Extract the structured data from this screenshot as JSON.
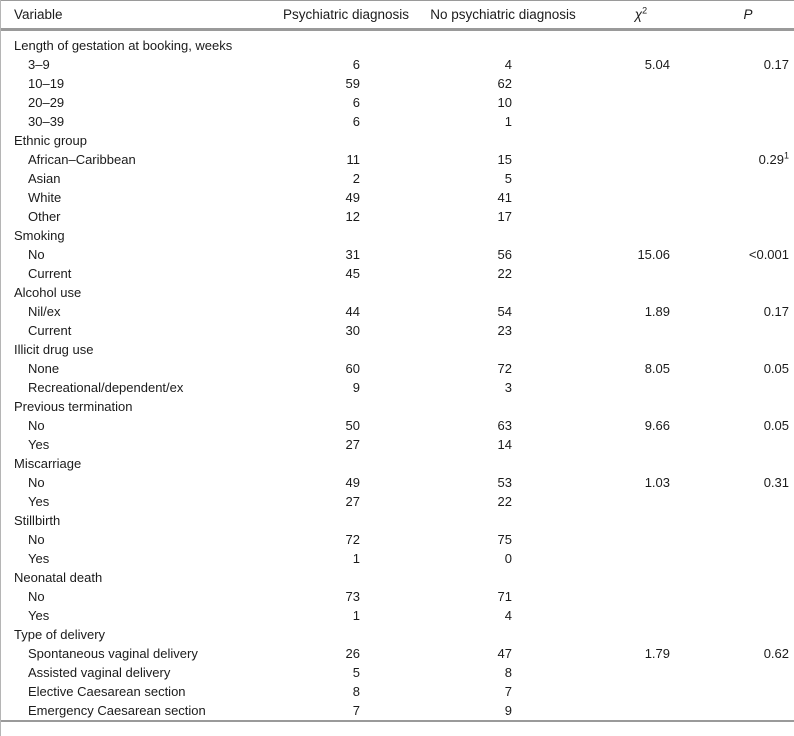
{
  "table": {
    "header": {
      "variable": "Variable",
      "psych": "Psychiatric diagnosis",
      "no_psych": "No psychiatric diagnosis",
      "chi_base": "χ",
      "chi_sup": "2",
      "p": "P"
    },
    "rows": [
      {
        "label": "Length of gestation at booking, weeks",
        "group": true,
        "pd": "",
        "npd": "",
        "chi2": "",
        "p": ""
      },
      {
        "label": "3–9",
        "group": false,
        "pd": "6",
        "npd": "4",
        "chi2": "5.04",
        "p": "0.17"
      },
      {
        "label": "10–19",
        "group": false,
        "pd": "59",
        "npd": "62",
        "chi2": "",
        "p": ""
      },
      {
        "label": "20–29",
        "group": false,
        "pd": "6",
        "npd": "10",
        "chi2": "",
        "p": ""
      },
      {
        "label": "30–39",
        "group": false,
        "pd": "6",
        "npd": "1",
        "chi2": "",
        "p": ""
      },
      {
        "label": "Ethnic group",
        "group": true,
        "pd": "",
        "npd": "",
        "chi2": "",
        "p": ""
      },
      {
        "label": "African–Caribbean",
        "group": false,
        "pd": "11",
        "npd": "15",
        "chi2": "",
        "p": "0.29",
        "p_sup": "1"
      },
      {
        "label": "Asian",
        "group": false,
        "pd": "2",
        "npd": "5",
        "chi2": "",
        "p": ""
      },
      {
        "label": "White",
        "group": false,
        "pd": "49",
        "npd": "41",
        "chi2": "",
        "p": ""
      },
      {
        "label": "Other",
        "group": false,
        "pd": "12",
        "npd": "17",
        "chi2": "",
        "p": ""
      },
      {
        "label": "Smoking",
        "group": true,
        "pd": "",
        "npd": "",
        "chi2": "",
        "p": ""
      },
      {
        "label": "No",
        "group": false,
        "pd": "31",
        "npd": "56",
        "chi2": "15.06",
        "p": "<0.001"
      },
      {
        "label": "Current",
        "group": false,
        "pd": "45",
        "npd": "22",
        "chi2": "",
        "p": ""
      },
      {
        "label": "Alcohol use",
        "group": true,
        "pd": "",
        "npd": "",
        "chi2": "",
        "p": ""
      },
      {
        "label": "Nil/ex",
        "group": false,
        "pd": "44",
        "npd": "54",
        "chi2": "1.89",
        "p": "0.17"
      },
      {
        "label": "Current",
        "group": false,
        "pd": "30",
        "npd": "23",
        "chi2": "",
        "p": ""
      },
      {
        "label": "Illicit drug use",
        "group": true,
        "pd": "",
        "npd": "",
        "chi2": "",
        "p": ""
      },
      {
        "label": "None",
        "group": false,
        "pd": "60",
        "npd": "72",
        "chi2": "8.05",
        "p": "0.05"
      },
      {
        "label": "Recreational/dependent/ex",
        "group": false,
        "pd": "9",
        "npd": "3",
        "chi2": "",
        "p": ""
      },
      {
        "label": "Previous termination",
        "group": true,
        "pd": "",
        "npd": "",
        "chi2": "",
        "p": ""
      },
      {
        "label": "No",
        "group": false,
        "pd": "50",
        "npd": "63",
        "chi2": "9.66",
        "p": "0.05"
      },
      {
        "label": "Yes",
        "group": false,
        "pd": "27",
        "npd": "14",
        "chi2": "",
        "p": ""
      },
      {
        "label": "Miscarriage",
        "group": true,
        "pd": "",
        "npd": "",
        "chi2": "",
        "p": ""
      },
      {
        "label": "No",
        "group": false,
        "pd": "49",
        "npd": "53",
        "chi2": "1.03",
        "p": "0.31"
      },
      {
        "label": "Yes",
        "group": false,
        "pd": "27",
        "npd": "22",
        "chi2": "",
        "p": ""
      },
      {
        "label": "Stillbirth",
        "group": true,
        "pd": "",
        "npd": "",
        "chi2": "",
        "p": ""
      },
      {
        "label": "No",
        "group": false,
        "pd": "72",
        "npd": "75",
        "chi2": "",
        "p": ""
      },
      {
        "label": "Yes",
        "group": false,
        "pd": "1",
        "npd": "0",
        "chi2": "",
        "p": ""
      },
      {
        "label": "Neonatal death",
        "group": true,
        "pd": "",
        "npd": "",
        "chi2": "",
        "p": ""
      },
      {
        "label": "No",
        "group": false,
        "pd": "73",
        "npd": "71",
        "chi2": "",
        "p": ""
      },
      {
        "label": "Yes",
        "group": false,
        "pd": "1",
        "npd": "4",
        "chi2": "",
        "p": ""
      },
      {
        "label": "Type of delivery",
        "group": true,
        "pd": "",
        "npd": "",
        "chi2": "",
        "p": ""
      },
      {
        "label": "Spontaneous vaginal delivery",
        "group": false,
        "pd": "26",
        "npd": "47",
        "chi2": "1.79",
        "p": "0.62"
      },
      {
        "label": "Assisted vaginal delivery",
        "group": false,
        "pd": "5",
        "npd": "8",
        "chi2": "",
        "p": ""
      },
      {
        "label": "Elective Caesarean section",
        "group": false,
        "pd": "8",
        "npd": "7",
        "chi2": "",
        "p": ""
      },
      {
        "label": "Emergency Caesarean section",
        "group": false,
        "pd": "7",
        "npd": "9",
        "chi2": "",
        "p": ""
      }
    ],
    "colors": {
      "rule": "#9a9a9a",
      "left_rule": "#b5b5b5",
      "text": "#1b1b1b"
    }
  }
}
